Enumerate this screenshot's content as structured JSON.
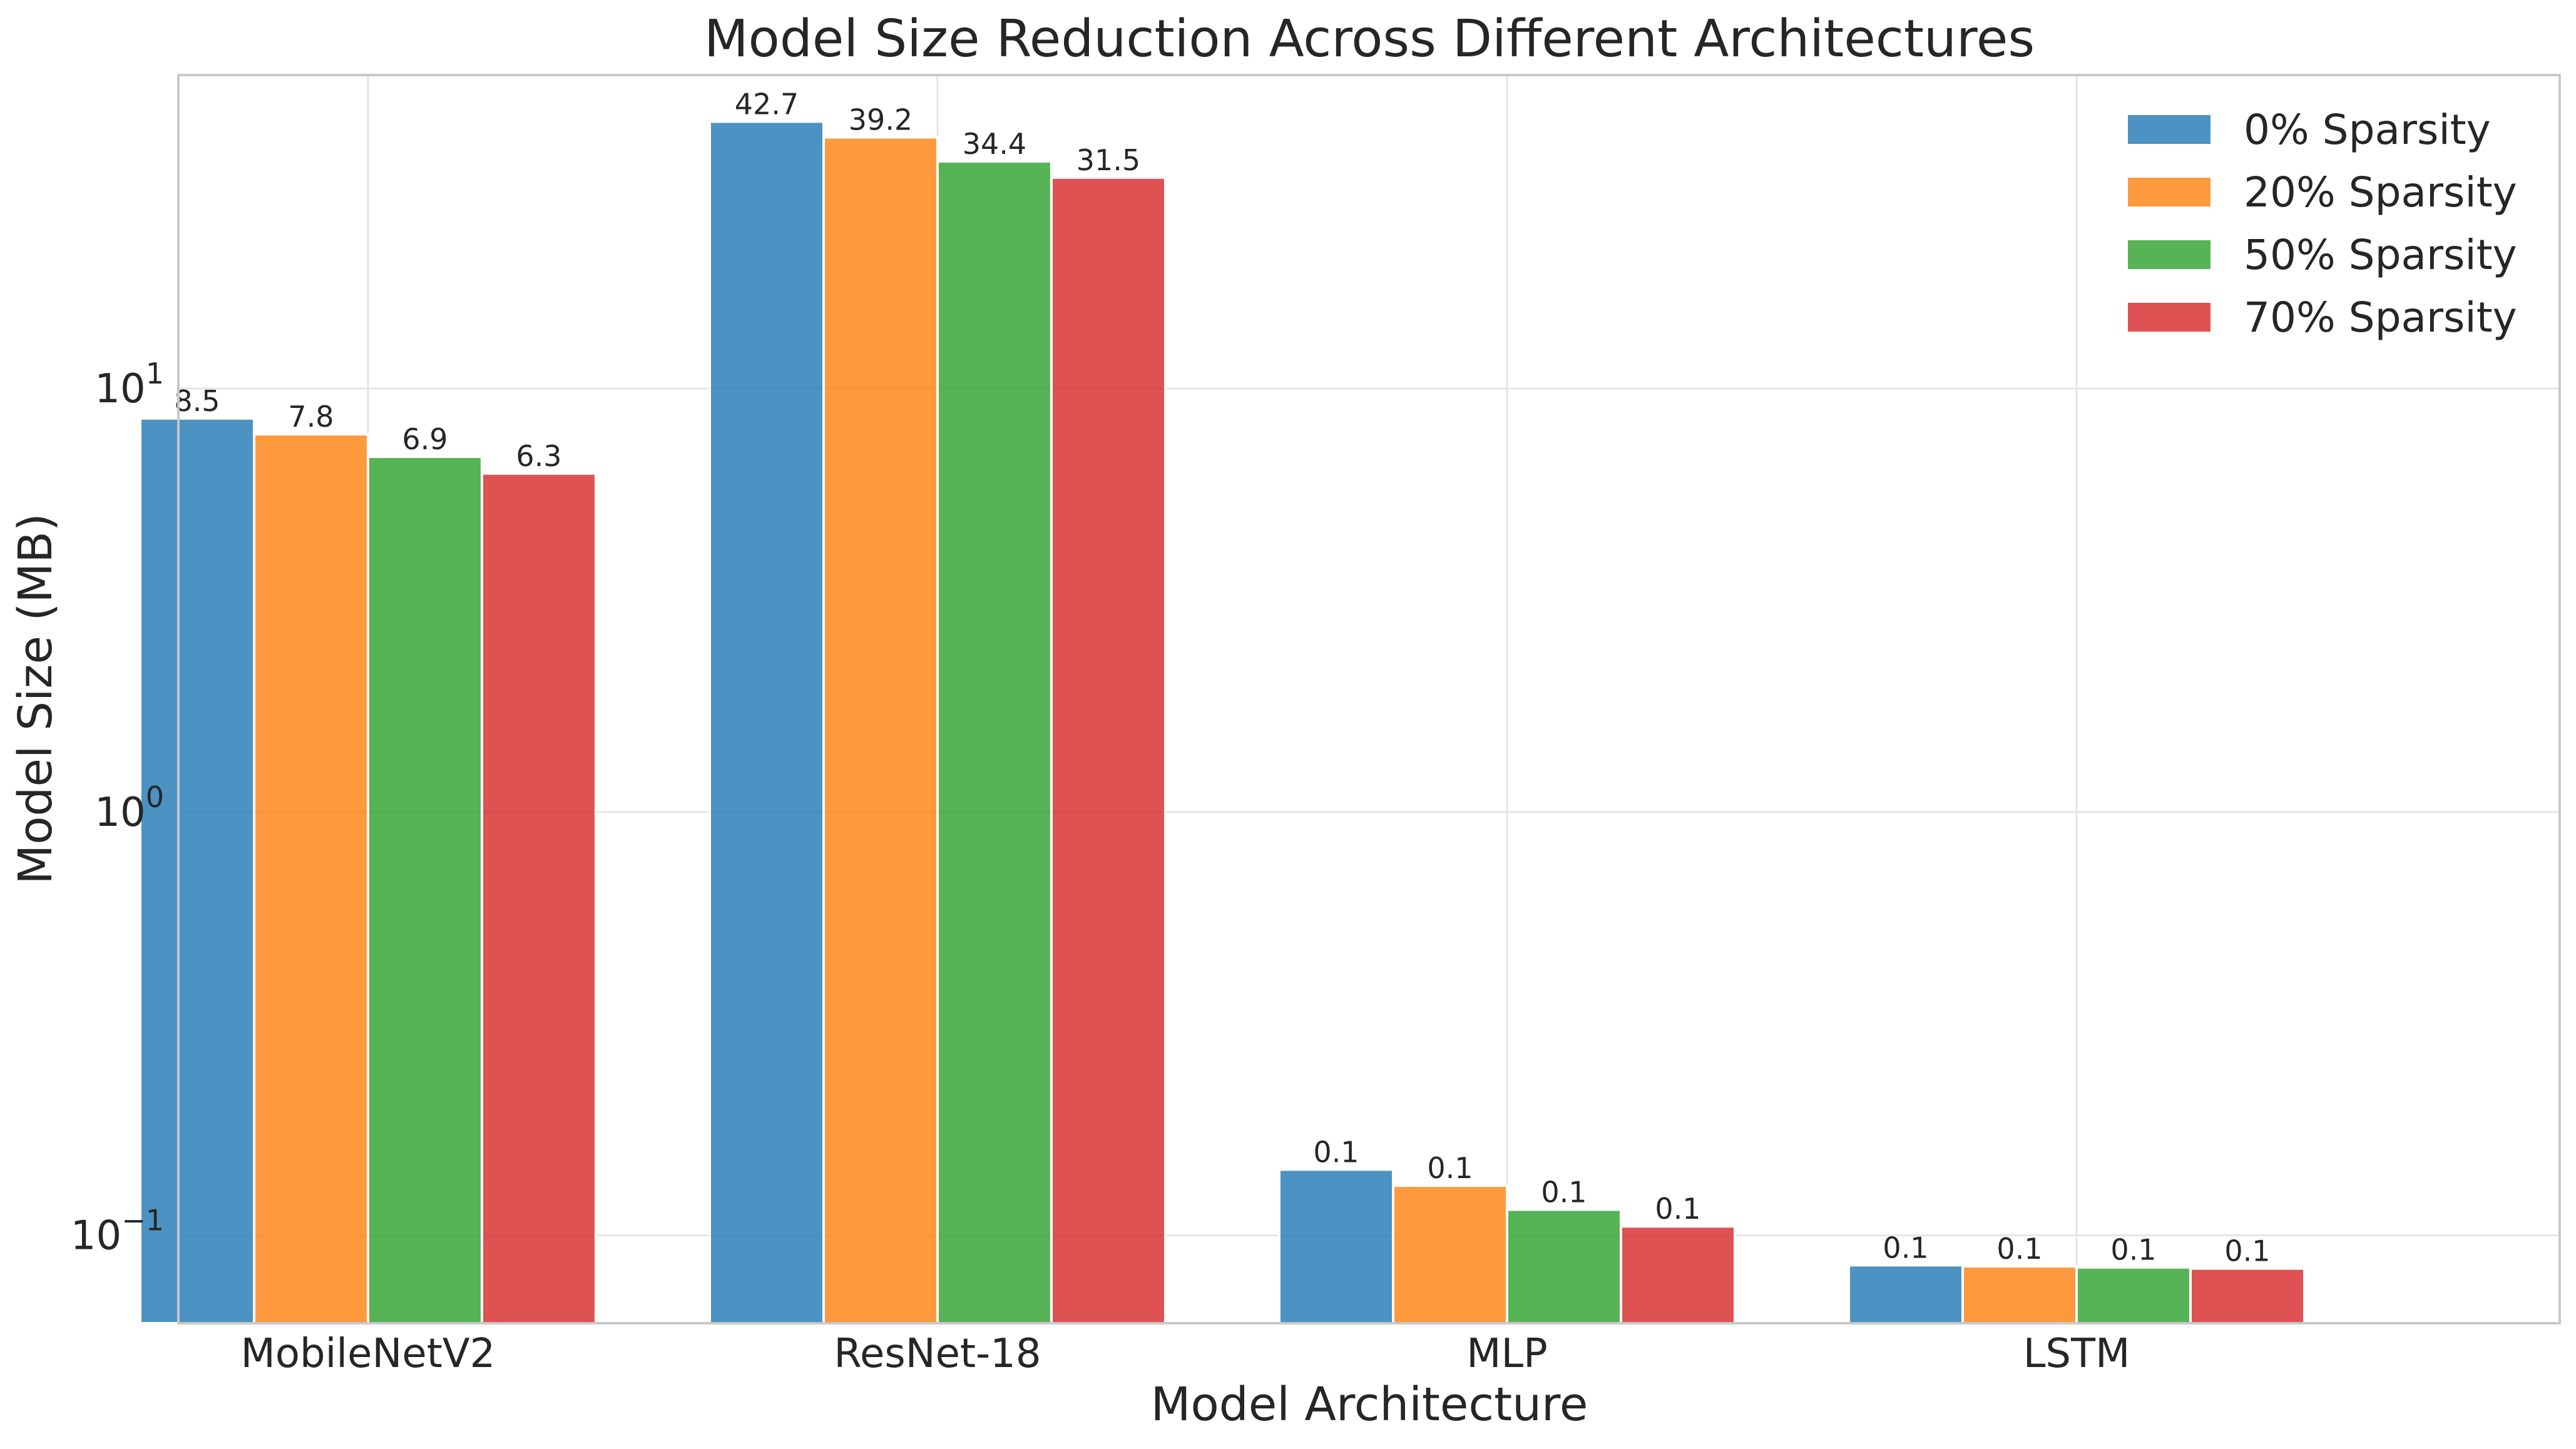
{
  "chart_data": {
    "type": "bar",
    "title": "Model Size Reduction Across Different Architectures",
    "xlabel": "Model Architecture",
    "ylabel": "Model Size (MB)",
    "yscale": "log",
    "ylim": [
      0.062,
      55
    ],
    "yticks": [
      {
        "value": 0.1,
        "base": "10",
        "exp": "−1"
      },
      {
        "value": 1,
        "base": "10",
        "exp": "0"
      },
      {
        "value": 10,
        "base": "10",
        "exp": "1"
      }
    ],
    "grid": true,
    "legend_position": "top-right",
    "categories": [
      "MobileNetV2",
      "ResNet-18",
      "MLP",
      "LSTM"
    ],
    "series": [
      {
        "name": "0% Sparsity",
        "color": "#1f77b4",
        "values": [
          8.5,
          42.7,
          0.143,
          0.085
        ],
        "labels": [
          "8.5",
          "42.7",
          "0.1",
          "0.1"
        ]
      },
      {
        "name": "20% Sparsity",
        "color": "#ff7f0e",
        "values": [
          7.8,
          39.2,
          0.131,
          0.0845
        ],
        "labels": [
          "7.8",
          "39.2",
          "0.1",
          "0.1"
        ]
      },
      {
        "name": "50% Sparsity",
        "color": "#2ca02c",
        "values": [
          6.9,
          34.4,
          0.115,
          0.084
        ],
        "labels": [
          "6.9",
          "34.4",
          "0.1",
          "0.1"
        ]
      },
      {
        "name": "70% Sparsity",
        "color": "#d62728",
        "values": [
          6.3,
          31.5,
          0.105,
          0.0835
        ],
        "labels": [
          "6.3",
          "31.5",
          "0.1",
          "0.1"
        ]
      }
    ]
  }
}
